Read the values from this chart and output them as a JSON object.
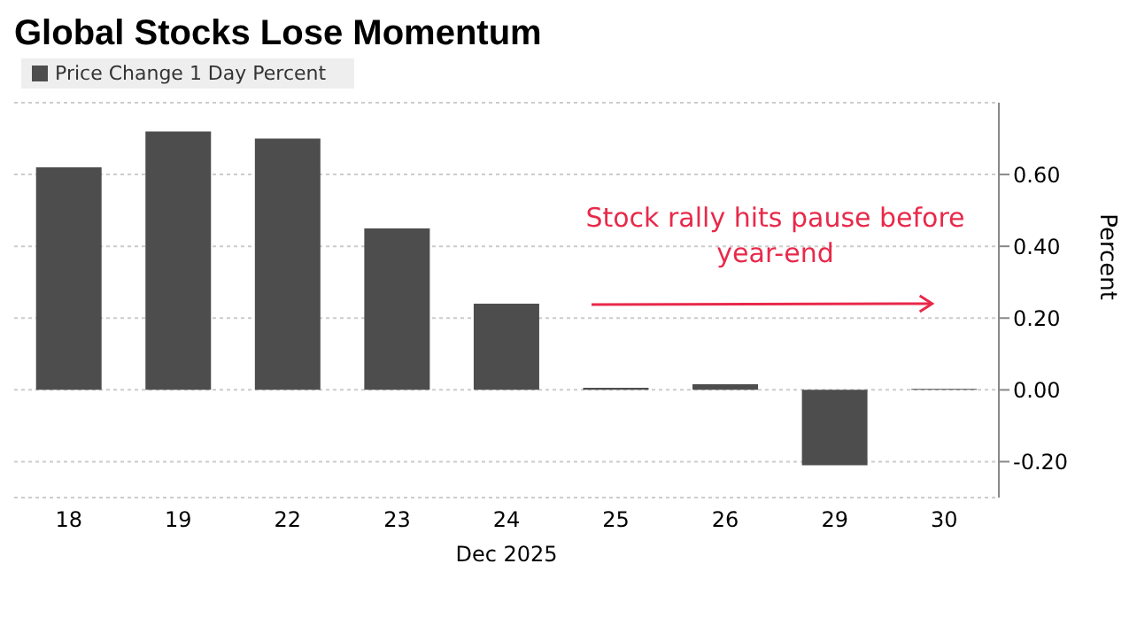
{
  "chart_data": {
    "type": "bar",
    "title": "Global Stocks Lose Momentum",
    "xlabel": "Dec 2025",
    "ylabel": "Percent",
    "categories": [
      "18",
      "19",
      "22",
      "23",
      "24",
      "25",
      "26",
      "29",
      "30"
    ],
    "series": [
      {
        "name": "Price Change 1 Day Percent",
        "color": "#4d4d4d",
        "values": [
          0.62,
          0.72,
          0.7,
          0.45,
          0.24,
          0.006,
          0.016,
          -0.21,
          0.003
        ]
      }
    ],
    "ylim": [
      -0.3,
      0.8
    ],
    "yticks": [
      {
        "value": -0.2,
        "label": "-0.20"
      },
      {
        "value": 0,
        "label": "0.00"
      },
      {
        "value": 0.2,
        "label": "0.20"
      },
      {
        "value": 0.4,
        "label": "0.40"
      },
      {
        "value": 0.6,
        "label": "0.60"
      }
    ],
    "grid": "y",
    "legend": "top left",
    "annotations": [
      "Stock rally hits pause before year-end"
    ]
  }
}
